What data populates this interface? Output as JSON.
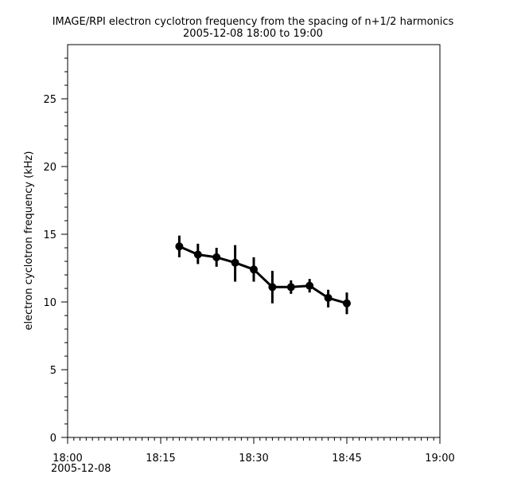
{
  "chart_data": {
    "type": "line",
    "title": "IMAGE/RPI  electron cyclotron frequency from the spacing of n+1/2 harmonics",
    "subtitle": "2005-12-08 18:00 to 19:00",
    "xlabel": "",
    "ylabel": "electron cyclotron frequency (kHz)",
    "x_date_label": "2005-12-08",
    "xlim": [
      "18:00",
      "19:00"
    ],
    "ylim": [
      0,
      29
    ],
    "x_ticks": [
      "18:00",
      "18:15",
      "18:30",
      "18:45",
      "19:00"
    ],
    "y_ticks": [
      "0",
      "5",
      "10",
      "15",
      "20",
      "25"
    ],
    "grid": false,
    "series_color": "#000000",
    "series": [
      {
        "x": [
          "18:18",
          "18:21",
          "18:24",
          "18:27",
          "18:30",
          "18:33",
          "18:36",
          "18:39",
          "18:42",
          "18:45"
        ],
        "values": [
          14.1,
          13.5,
          13.3,
          12.9,
          12.4,
          11.1,
          11.1,
          11.2,
          10.3,
          9.9
        ],
        "err_low": [
          13.3,
          12.8,
          12.6,
          11.5,
          11.5,
          9.9,
          10.6,
          10.7,
          9.6,
          9.1
        ],
        "err_high": [
          14.9,
          14.3,
          14.0,
          14.2,
          13.3,
          12.3,
          11.6,
          11.7,
          10.9,
          10.7
        ]
      }
    ]
  }
}
